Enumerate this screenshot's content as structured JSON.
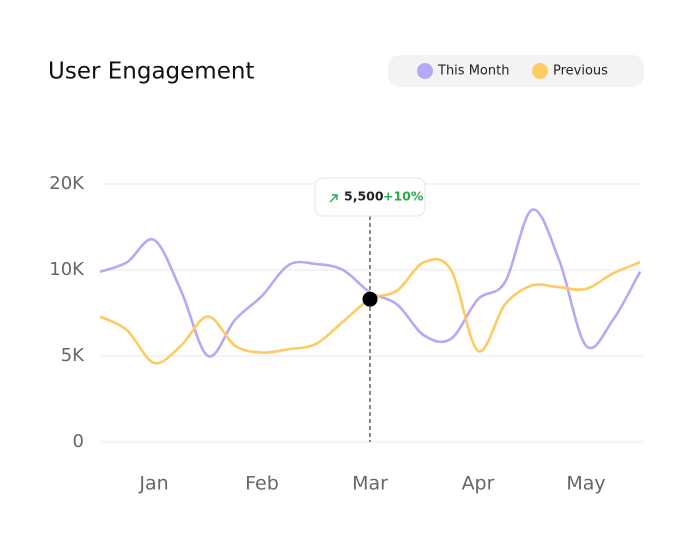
{
  "chart_data": {
    "type": "line",
    "title": "User Engagement",
    "categories": [
      null,
      null,
      "Jan",
      null,
      null,
      null,
      "Feb",
      null,
      null,
      null,
      "Mar",
      null,
      null,
      null,
      "Apr",
      null,
      null,
      null,
      "May",
      null,
      null
    ],
    "series": [
      {
        "name": "This Month",
        "color": "#b7a8f6",
        "values": [
          9900,
          10900,
          13500,
          8800,
          5000,
          7100,
          8500,
          10600,
          10700,
          10000,
          8700,
          8000,
          6200,
          6000,
          8300,
          9300,
          17000,
          11200,
          5600,
          7100,
          9900
        ]
      },
      {
        "name": "Previous",
        "color": "#fdcb62",
        "values": [
          7300,
          6500,
          4600,
          5600,
          7300,
          5600,
          5200,
          5400,
          5700,
          7000,
          8300,
          8800,
          10900,
          10000,
          5300,
          8000,
          9100,
          9000,
          8900,
          9800,
          10900
        ]
      }
    ],
    "ylim": [
      0,
      20000
    ],
    "yticks": [
      0,
      {
        "value": 5000,
        "label": "5K"
      },
      {
        "value": 10000,
        "label": "10K"
      },
      {
        "value": 20000,
        "label": "20K"
      }
    ],
    "grid": true,
    "annotation": {
      "value": "5,500",
      "change": "+10%"
    }
  }
}
